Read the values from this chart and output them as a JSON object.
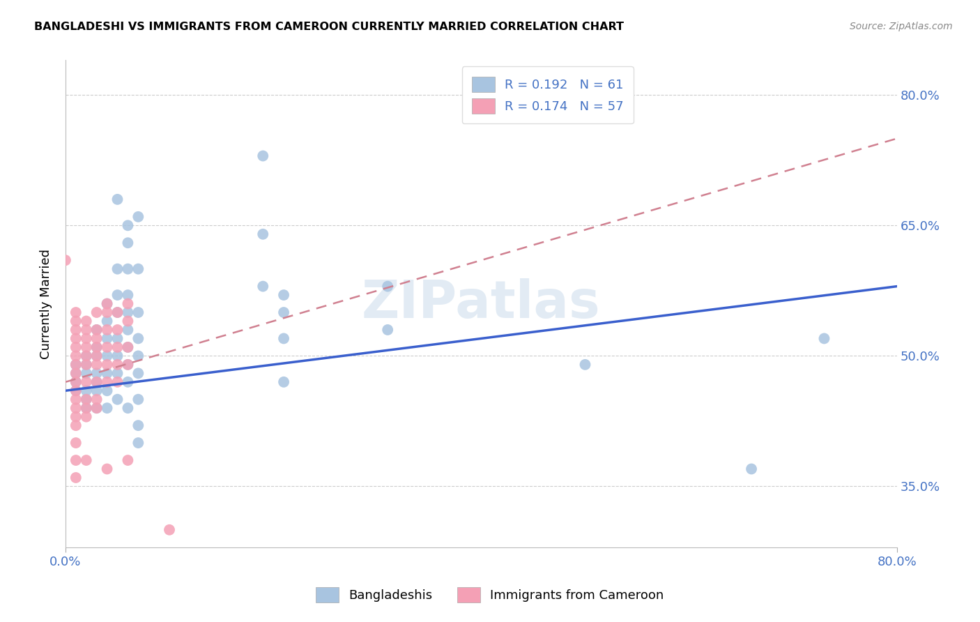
{
  "title": "BANGLADESHI VS IMMIGRANTS FROM CAMEROON CURRENTLY MARRIED CORRELATION CHART",
  "source": "Source: ZipAtlas.com",
  "ylabel": "Currently Married",
  "xmin": 0.0,
  "xmax": 0.8,
  "ymin": 0.28,
  "ymax": 0.84,
  "yticks": [
    0.35,
    0.5,
    0.65,
    0.8
  ],
  "ytick_labels": [
    "35.0%",
    "50.0%",
    "65.0%",
    "80.0%"
  ],
  "blue_color": "#a8c4e0",
  "pink_color": "#f4a0b5",
  "blue_line_color": "#3a5fcd",
  "pink_line_color": "#d08090",
  "legend_text_color": "#4472c4",
  "watermark": "ZIPatlas",
  "blue_points": [
    [
      0.01,
      0.49
    ],
    [
      0.01,
      0.48
    ],
    [
      0.01,
      0.47
    ],
    [
      0.01,
      0.46
    ],
    [
      0.02,
      0.5
    ],
    [
      0.02,
      0.49
    ],
    [
      0.02,
      0.48
    ],
    [
      0.02,
      0.46
    ],
    [
      0.02,
      0.45
    ],
    [
      0.02,
      0.44
    ],
    [
      0.03,
      0.53
    ],
    [
      0.03,
      0.51
    ],
    [
      0.03,
      0.5
    ],
    [
      0.03,
      0.48
    ],
    [
      0.03,
      0.47
    ],
    [
      0.03,
      0.46
    ],
    [
      0.03,
      0.44
    ],
    [
      0.04,
      0.56
    ],
    [
      0.04,
      0.54
    ],
    [
      0.04,
      0.52
    ],
    [
      0.04,
      0.5
    ],
    [
      0.04,
      0.48
    ],
    [
      0.04,
      0.46
    ],
    [
      0.04,
      0.44
    ],
    [
      0.05,
      0.68
    ],
    [
      0.05,
      0.6
    ],
    [
      0.05,
      0.57
    ],
    [
      0.05,
      0.55
    ],
    [
      0.05,
      0.52
    ],
    [
      0.05,
      0.5
    ],
    [
      0.05,
      0.48
    ],
    [
      0.05,
      0.45
    ],
    [
      0.06,
      0.65
    ],
    [
      0.06,
      0.63
    ],
    [
      0.06,
      0.6
    ],
    [
      0.06,
      0.57
    ],
    [
      0.06,
      0.55
    ],
    [
      0.06,
      0.53
    ],
    [
      0.06,
      0.51
    ],
    [
      0.06,
      0.49
    ],
    [
      0.06,
      0.47
    ],
    [
      0.06,
      0.44
    ],
    [
      0.07,
      0.66
    ],
    [
      0.07,
      0.6
    ],
    [
      0.07,
      0.55
    ],
    [
      0.07,
      0.52
    ],
    [
      0.07,
      0.5
    ],
    [
      0.07,
      0.48
    ],
    [
      0.07,
      0.45
    ],
    [
      0.07,
      0.42
    ],
    [
      0.07,
      0.4
    ],
    [
      0.19,
      0.73
    ],
    [
      0.19,
      0.64
    ],
    [
      0.19,
      0.58
    ],
    [
      0.21,
      0.57
    ],
    [
      0.21,
      0.55
    ],
    [
      0.21,
      0.52
    ],
    [
      0.21,
      0.47
    ],
    [
      0.31,
      0.58
    ],
    [
      0.31,
      0.53
    ],
    [
      0.5,
      0.49
    ],
    [
      0.66,
      0.37
    ],
    [
      0.73,
      0.52
    ]
  ],
  "pink_points": [
    [
      0.0,
      0.61
    ],
    [
      0.01,
      0.55
    ],
    [
      0.01,
      0.54
    ],
    [
      0.01,
      0.53
    ],
    [
      0.01,
      0.52
    ],
    [
      0.01,
      0.51
    ],
    [
      0.01,
      0.5
    ],
    [
      0.01,
      0.49
    ],
    [
      0.01,
      0.48
    ],
    [
      0.01,
      0.47
    ],
    [
      0.01,
      0.46
    ],
    [
      0.01,
      0.45
    ],
    [
      0.01,
      0.44
    ],
    [
      0.01,
      0.43
    ],
    [
      0.01,
      0.42
    ],
    [
      0.01,
      0.4
    ],
    [
      0.01,
      0.38
    ],
    [
      0.01,
      0.36
    ],
    [
      0.02,
      0.54
    ],
    [
      0.02,
      0.53
    ],
    [
      0.02,
      0.52
    ],
    [
      0.02,
      0.51
    ],
    [
      0.02,
      0.5
    ],
    [
      0.02,
      0.49
    ],
    [
      0.02,
      0.47
    ],
    [
      0.02,
      0.45
    ],
    [
      0.02,
      0.44
    ],
    [
      0.02,
      0.43
    ],
    [
      0.02,
      0.38
    ],
    [
      0.03,
      0.55
    ],
    [
      0.03,
      0.53
    ],
    [
      0.03,
      0.52
    ],
    [
      0.03,
      0.51
    ],
    [
      0.03,
      0.5
    ],
    [
      0.03,
      0.49
    ],
    [
      0.03,
      0.47
    ],
    [
      0.03,
      0.45
    ],
    [
      0.03,
      0.44
    ],
    [
      0.04,
      0.56
    ],
    [
      0.04,
      0.55
    ],
    [
      0.04,
      0.53
    ],
    [
      0.04,
      0.51
    ],
    [
      0.04,
      0.49
    ],
    [
      0.04,
      0.47
    ],
    [
      0.04,
      0.37
    ],
    [
      0.05,
      0.55
    ],
    [
      0.05,
      0.53
    ],
    [
      0.05,
      0.51
    ],
    [
      0.05,
      0.49
    ],
    [
      0.05,
      0.47
    ],
    [
      0.06,
      0.56
    ],
    [
      0.06,
      0.54
    ],
    [
      0.06,
      0.51
    ],
    [
      0.06,
      0.49
    ],
    [
      0.06,
      0.38
    ],
    [
      0.1,
      0.3
    ]
  ],
  "blue_line_endpoints": [
    [
      0.0,
      0.46
    ],
    [
      0.8,
      0.58
    ]
  ],
  "pink_line_endpoints": [
    [
      0.0,
      0.47
    ],
    [
      0.8,
      0.75
    ]
  ]
}
